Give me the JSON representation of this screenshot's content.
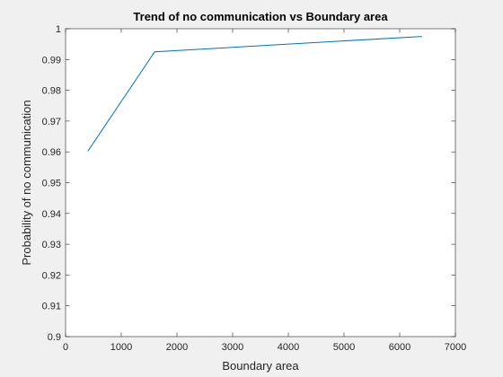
{
  "chart_data": {
    "type": "line",
    "title": "Trend of no communication vs Boundary area",
    "xlabel": "Boundary area",
    "ylabel": "Probability of no communication",
    "xlim": [
      0,
      7000
    ],
    "ylim": [
      0.9,
      1.0
    ],
    "x_ticks": [
      0,
      1000,
      2000,
      3000,
      4000,
      5000,
      6000,
      7000
    ],
    "y_ticks": [
      0.9,
      0.91,
      0.92,
      0.93,
      0.94,
      0.95,
      0.96,
      0.97,
      0.98,
      0.99,
      1
    ],
    "grid": false,
    "series": [
      {
        "x": [
          400,
          1600,
          6400
        ],
        "y": [
          0.9602,
          0.9925,
          0.9975
        ],
        "color": "#0072bd"
      }
    ]
  },
  "colors": {
    "figure_background": "#f0f0f0",
    "axes_background": "#ffffff",
    "axis_color": "#262626",
    "line_color": "#0072bd"
  }
}
